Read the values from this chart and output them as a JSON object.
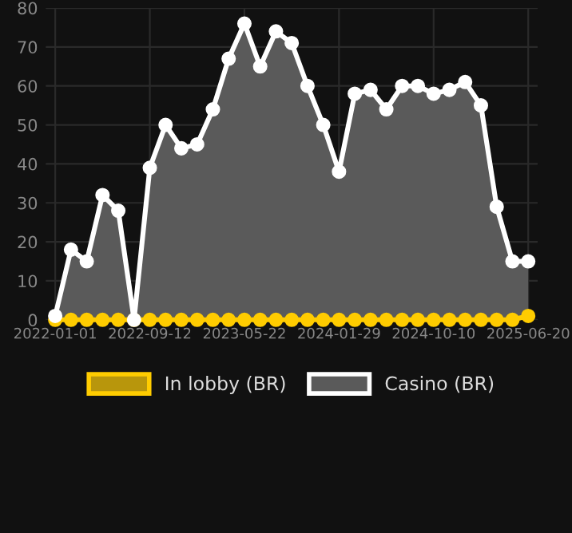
{
  "chart_data": {
    "type": "area",
    "categories": [
      "2022-01-01",
      null,
      null,
      null,
      null,
      null,
      "2022-09-12",
      null,
      null,
      null,
      null,
      null,
      "2023-05-22",
      null,
      null,
      null,
      null,
      null,
      "2024-01-29",
      null,
      null,
      null,
      null,
      null,
      "2024-10-10",
      null,
      null,
      null,
      null,
      null,
      "2025-06-20"
    ],
    "series": [
      {
        "name": "In lobby (BR)",
        "type": "line",
        "color": "#ffcc00",
        "values": [
          0,
          0,
          0,
          0,
          0,
          0,
          0,
          0,
          0,
          0,
          0,
          0,
          0,
          0,
          0,
          0,
          0,
          0,
          0,
          0,
          0,
          0,
          0,
          0,
          0,
          0,
          0,
          0,
          0,
          0,
          1
        ]
      },
      {
        "name": "Casino (BR)",
        "color": "#ffffff",
        "values": [
          1,
          18,
          15,
          32,
          28,
          0,
          39,
          50,
          44,
          45,
          54,
          67,
          76,
          65,
          74,
          71,
          60,
          50,
          38,
          58,
          59,
          54,
          60,
          60,
          58,
          59,
          61,
          55,
          29,
          15,
          15
        ]
      }
    ],
    "ylim": [
      0,
      80
    ],
    "yticks": [
      0,
      10,
      20,
      30,
      40,
      50,
      60,
      70,
      80
    ],
    "grid": true,
    "legend": "bottom",
    "marker": "circle"
  }
}
